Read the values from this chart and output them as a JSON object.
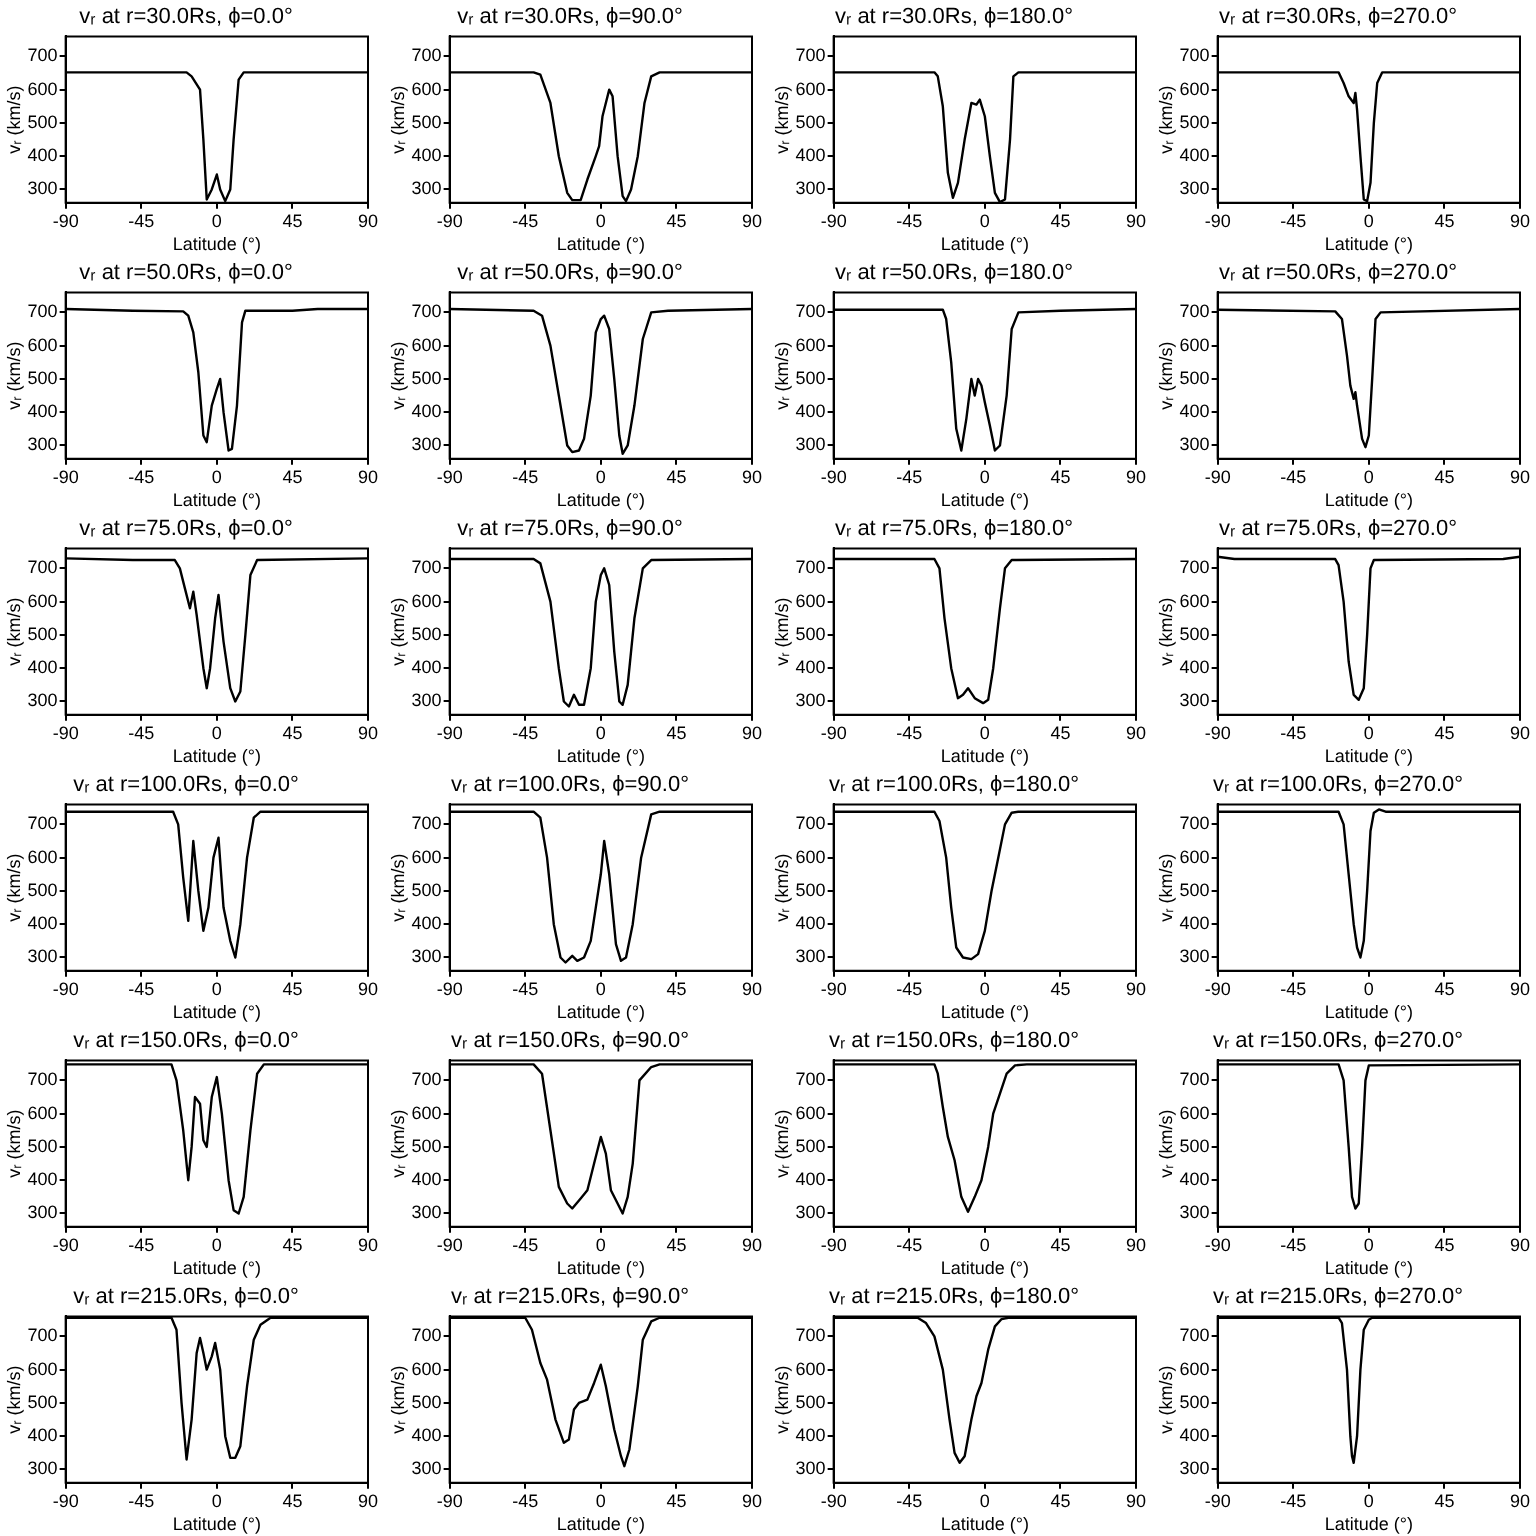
{
  "chart_data": [
    {
      "type": "line",
      "title": "vᵣ at r=30.0Rs, ϕ=0.0°",
      "xlabel": "Latitude (°)",
      "ylabel": "vᵣ (km/s)",
      "xlim": [
        -90,
        90
      ],
      "xticks": [
        -90,
        -45,
        0,
        45,
        90
      ],
      "ylim": [
        260,
        760
      ],
      "yticks": [
        300,
        400,
        500,
        600,
        700
      ],
      "x": [
        -90,
        -18,
        -15,
        -10,
        -8,
        -6,
        -3,
        0,
        2,
        5,
        8,
        10,
        13,
        16,
        90
      ],
      "series": [
        {
          "color": "#000000",
          "values": [
            652,
            652,
            640,
            600,
            450,
            270,
            300,
            345,
            300,
            265,
            300,
            450,
            630,
            652,
            652
          ]
        }
      ]
    },
    {
      "type": "line",
      "title": "vᵣ at r=30.0Rs, ϕ=90.0°",
      "xlabel": "Latitude (°)",
      "ylabel": "vᵣ (km/s)",
      "xlim": [
        -90,
        90
      ],
      "xticks": [
        -90,
        -45,
        0,
        45,
        90
      ],
      "ylim": [
        260,
        760
      ],
      "yticks": [
        300,
        400,
        500,
        600,
        700
      ],
      "x": [
        -90,
        -40,
        -36,
        -30,
        -25,
        -20,
        -17,
        -12,
        -8,
        -3,
        -1,
        1,
        5,
        7,
        10,
        13,
        15,
        18,
        22,
        26,
        30,
        35,
        90
      ],
      "series": [
        {
          "color": "#000000",
          "values": [
            652,
            652,
            645,
            560,
            400,
            290,
            268,
            268,
            330,
            400,
            430,
            520,
            600,
            580,
            400,
            280,
            265,
            300,
            400,
            560,
            640,
            652,
            652
          ]
        }
      ]
    },
    {
      "type": "line",
      "title": "vᵣ at r=30.0Rs, ϕ=180.0°",
      "xlabel": "Latitude (°)",
      "ylabel": "vᵣ (km/s)",
      "xlim": [
        -90,
        90
      ],
      "xticks": [
        -90,
        -45,
        0,
        45,
        90
      ],
      "ylim": [
        260,
        760
      ],
      "yticks": [
        300,
        400,
        500,
        600,
        700
      ],
      "x": [
        -90,
        -30,
        -28,
        -25,
        -22,
        -19,
        -16,
        -12,
        -8,
        -5,
        -3,
        0,
        3,
        6,
        9,
        12,
        15,
        17,
        20,
        90
      ],
      "series": [
        {
          "color": "#000000",
          "values": [
            652,
            652,
            640,
            550,
            350,
            275,
            320,
            450,
            560,
            555,
            570,
            520,
            400,
            290,
            262,
            270,
            450,
            640,
            652,
            652
          ]
        }
      ]
    },
    {
      "type": "line",
      "title": "vᵣ at r=30.0Rs, ϕ=270.0°",
      "xlabel": "Latitude (°)",
      "ylabel": "vᵣ (km/s)",
      "xlim": [
        -90,
        90
      ],
      "xticks": [
        -90,
        -45,
        0,
        45,
        90
      ],
      "ylim": [
        260,
        760
      ],
      "yticks": [
        300,
        400,
        500,
        600,
        700
      ],
      "x": [
        -90,
        -18,
        -15,
        -12,
        -9,
        -8,
        -7,
        -5,
        -3,
        -1,
        1,
        3,
        5,
        8,
        90
      ],
      "series": [
        {
          "color": "#000000",
          "values": [
            652,
            652,
            620,
            580,
            560,
            590,
            540,
            400,
            270,
            265,
            320,
            500,
            620,
            652,
            652
          ]
        }
      ]
    },
    {
      "type": "line",
      "title": "vᵣ at r=50.0Rs, ϕ=0.0°",
      "xlabel": "Latitude (°)",
      "ylabel": "vᵣ (km/s)",
      "xlim": [
        -90,
        90
      ],
      "xticks": [
        -90,
        -45,
        0,
        45,
        90
      ],
      "ylim": [
        260,
        760
      ],
      "yticks": [
        300,
        400,
        500,
        600,
        700
      ],
      "x": [
        -90,
        -50,
        -20,
        -17,
        -14,
        -11,
        -8,
        -6,
        -3,
        0,
        2,
        4,
        7,
        9,
        12,
        15,
        17,
        45,
        60,
        90
      ],
      "series": [
        {
          "color": "#000000",
          "values": [
            710,
            705,
            703,
            690,
            640,
            520,
            330,
            310,
            420,
            470,
            500,
            400,
            285,
            290,
            420,
            670,
            705,
            705,
            710,
            710
          ]
        }
      ]
    },
    {
      "type": "line",
      "title": "vᵣ at r=50.0Rs, ϕ=90.0°",
      "xlabel": "Latitude (°)",
      "ylabel": "vᵣ (km/s)",
      "xlim": [
        -90,
        90
      ],
      "xticks": [
        -90,
        -45,
        0,
        45,
        90
      ],
      "ylim": [
        260,
        760
      ],
      "yticks": [
        300,
        400,
        500,
        600,
        700
      ],
      "x": [
        -90,
        -40,
        -35,
        -30,
        -25,
        -20,
        -17,
        -13,
        -10,
        -6,
        -3,
        0,
        2,
        5,
        8,
        11,
        13,
        16,
        20,
        25,
        30,
        40,
        90
      ],
      "series": [
        {
          "color": "#000000",
          "values": [
            710,
            705,
            690,
            600,
            450,
            300,
            280,
            285,
            320,
            450,
            640,
            680,
            690,
            650,
            500,
            330,
            275,
            300,
            420,
            620,
            700,
            705,
            710
          ]
        }
      ]
    },
    {
      "type": "line",
      "title": "vᵣ at r=50.0Rs, ϕ=180.0°",
      "xlabel": "Latitude (°)",
      "ylabel": "vᵣ (km/s)",
      "xlim": [
        -90,
        90
      ],
      "xticks": [
        -90,
        -45,
        0,
        45,
        90
      ],
      "ylim": [
        260,
        760
      ],
      "yticks": [
        300,
        400,
        500,
        600,
        700
      ],
      "x": [
        -90,
        -25,
        -23,
        -20,
        -17,
        -14,
        -11,
        -8,
        -6,
        -4,
        -2,
        0,
        3,
        6,
        9,
        13,
        16,
        20,
        45,
        90
      ],
      "series": [
        {
          "color": "#000000",
          "values": [
            708,
            708,
            680,
            550,
            350,
            285,
            380,
            500,
            450,
            500,
            480,
            430,
            360,
            285,
            300,
            450,
            650,
            700,
            705,
            710
          ]
        }
      ]
    },
    {
      "type": "line",
      "title": "vᵣ at r=50.0Rs, ϕ=270.0°",
      "xlabel": "Latitude (°)",
      "ylabel": "vᵣ (km/s)",
      "xlim": [
        -90,
        90
      ],
      "xticks": [
        -90,
        -45,
        0,
        45,
        90
      ],
      "ylim": [
        260,
        760
      ],
      "yticks": [
        300,
        400,
        500,
        600,
        700
      ],
      "x": [
        -90,
        -20,
        -16,
        -13,
        -11,
        -9,
        -8,
        -7,
        -4,
        -2,
        0,
        2,
        4,
        7,
        90
      ],
      "series": [
        {
          "color": "#000000",
          "values": [
            708,
            703,
            680,
            570,
            480,
            440,
            460,
            420,
            320,
            295,
            330,
            500,
            680,
            700,
            710
          ]
        }
      ]
    },
    {
      "type": "line",
      "title": "vᵣ at r=75.0Rs, ϕ=0.0°",
      "xlabel": "Latitude (°)",
      "ylabel": "vᵣ (km/s)",
      "xlim": [
        -90,
        90
      ],
      "xticks": [
        -90,
        -45,
        0,
        45,
        90
      ],
      "ylim": [
        260,
        760
      ],
      "yticks": [
        300,
        400,
        500,
        600,
        700
      ],
      "x": [
        -90,
        -50,
        -25,
        -22,
        -19,
        -16,
        -14,
        -12,
        -8,
        -6,
        -4,
        -1,
        1,
        4,
        8,
        11,
        14,
        17,
        20,
        24,
        90
      ],
      "series": [
        {
          "color": "#000000",
          "values": [
            730,
            725,
            725,
            700,
            640,
            580,
            630,
            560,
            400,
            340,
            400,
            550,
            620,
            480,
            340,
            300,
            330,
            500,
            680,
            725,
            730
          ]
        }
      ]
    },
    {
      "type": "line",
      "title": "vᵣ at r=75.0Rs, ϕ=90.0°",
      "xlabel": "Latitude (°)",
      "ylabel": "vᵣ (km/s)",
      "xlim": [
        -90,
        90
      ],
      "xticks": [
        -90,
        -45,
        0,
        45,
        90
      ],
      "ylim": [
        260,
        760
      ],
      "yticks": [
        300,
        400,
        500,
        600,
        700
      ],
      "x": [
        -90,
        -40,
        -36,
        -30,
        -25,
        -22,
        -19,
        -16,
        -13,
        -10,
        -6,
        -3,
        0,
        2,
        5,
        8,
        11,
        13,
        16,
        20,
        25,
        30,
        90
      ],
      "series": [
        {
          "color": "#000000",
          "values": [
            728,
            728,
            715,
            600,
            400,
            300,
            285,
            320,
            290,
            290,
            400,
            600,
            680,
            700,
            650,
            450,
            300,
            290,
            350,
            550,
            700,
            725,
            728
          ]
        }
      ]
    },
    {
      "type": "line",
      "title": "vᵣ at r=75.0Rs, ϕ=180.0°",
      "xlabel": "Latitude (°)",
      "ylabel": "vᵣ (km/s)",
      "xlim": [
        -90,
        90
      ],
      "xticks": [
        -90,
        -45,
        0,
        45,
        90
      ],
      "ylim": [
        260,
        760
      ],
      "yticks": [
        300,
        400,
        500,
        600,
        700
      ],
      "x": [
        -90,
        -30,
        -27,
        -24,
        -20,
        -16,
        -13,
        -10,
        -6,
        -1,
        2,
        5,
        9,
        12,
        16,
        90
      ],
      "series": [
        {
          "color": "#000000",
          "values": [
            728,
            728,
            700,
            550,
            400,
            310,
            320,
            340,
            310,
            295,
            305,
            400,
            580,
            700,
            725,
            728
          ]
        }
      ]
    },
    {
      "type": "line",
      "title": "vᵣ at r=75.0Rs, ϕ=270.0°",
      "xlabel": "Latitude (°)",
      "ylabel": "vᵣ (km/s)",
      "xlim": [
        -90,
        90
      ],
      "xticks": [
        -90,
        -45,
        0,
        45,
        90
      ],
      "ylim": [
        260,
        760
      ],
      "yticks": [
        300,
        400,
        500,
        600,
        700
      ],
      "x": [
        -90,
        -80,
        -20,
        -18,
        -15,
        -12,
        -9,
        -6,
        -3,
        -1,
        1,
        3,
        80,
        90
      ],
      "series": [
        {
          "color": "#000000",
          "values": [
            735,
            728,
            728,
            710,
            600,
            420,
            320,
            305,
            340,
            500,
            700,
            725,
            728,
            735
          ]
        }
      ]
    },
    {
      "type": "line",
      "title": "vᵣ at r=100.0Rs, ϕ=0.0°",
      "xlabel": "Latitude (°)",
      "ylabel": "vᵣ (km/s)",
      "xlim": [
        -90,
        90
      ],
      "xticks": [
        -90,
        -45,
        0,
        45,
        90
      ],
      "ylim": [
        260,
        760
      ],
      "yticks": [
        300,
        400,
        500,
        600,
        700
      ],
      "x": [
        -90,
        -26,
        -23,
        -20,
        -17,
        -14,
        -11,
        -8,
        -5,
        -2,
        1,
        4,
        8,
        11,
        14,
        18,
        22,
        26,
        90
      ],
      "series": [
        {
          "color": "#000000",
          "values": [
            738,
            738,
            700,
            540,
            410,
            650,
            500,
            380,
            450,
            600,
            660,
            450,
            350,
            300,
            400,
            600,
            720,
            738,
            738
          ]
        }
      ]
    },
    {
      "type": "line",
      "title": "vᵣ at r=100.0Rs, ϕ=90.0°",
      "xlabel": "Latitude (°)",
      "ylabel": "vᵣ (km/s)",
      "xlim": [
        -90,
        90
      ],
      "xticks": [
        -90,
        -45,
        0,
        45,
        90
      ],
      "ylim": [
        260,
        760
      ],
      "yticks": [
        300,
        400,
        500,
        600,
        700
      ],
      "x": [
        -90,
        -40,
        -36,
        -32,
        -28,
        -24,
        -21,
        -17,
        -14,
        -10,
        -6,
        -3,
        0,
        2,
        5,
        9,
        12,
        15,
        19,
        24,
        30,
        35,
        90
      ],
      "series": [
        {
          "color": "#000000",
          "values": [
            738,
            738,
            720,
            600,
            400,
            300,
            285,
            305,
            290,
            300,
            350,
            450,
            550,
            650,
            550,
            340,
            290,
            300,
            400,
            600,
            730,
            738,
            738
          ]
        }
      ]
    },
    {
      "type": "line",
      "title": "vᵣ at r=100.0Rs, ϕ=180.0°",
      "xlabel": "Latitude (°)",
      "ylabel": "vᵣ (km/s)",
      "xlim": [
        -90,
        90
      ],
      "xticks": [
        -90,
        -45,
        0,
        45,
        90
      ],
      "ylim": [
        260,
        760
      ],
      "yticks": [
        300,
        400,
        500,
        600,
        700
      ],
      "x": [
        -90,
        -30,
        -27,
        -23,
        -20,
        -17,
        -13,
        -8,
        -4,
        0,
        4,
        8,
        12,
        16,
        20,
        90
      ],
      "series": [
        {
          "color": "#000000",
          "values": [
            738,
            738,
            710,
            600,
            450,
            330,
            300,
            295,
            310,
            380,
            500,
            600,
            700,
            735,
            738,
            738
          ]
        }
      ]
    },
    {
      "type": "line",
      "title": "vᵣ at r=100.0Rs, ϕ=270.0°",
      "xlabel": "Latitude (°)",
      "ylabel": "vᵣ (km/s)",
      "xlim": [
        -90,
        90
      ],
      "xticks": [
        -90,
        -45,
        0,
        45,
        90
      ],
      "ylim": [
        260,
        760
      ],
      "yticks": [
        300,
        400,
        500,
        600,
        700
      ],
      "x": [
        -90,
        -18,
        -15,
        -12,
        -9,
        -7,
        -5,
        -3,
        -1,
        1,
        3,
        6,
        10,
        90
      ],
      "series": [
        {
          "color": "#000000",
          "values": [
            738,
            738,
            700,
            550,
            400,
            330,
            300,
            350,
            500,
            680,
            735,
            745,
            738,
            738
          ]
        }
      ]
    },
    {
      "type": "line",
      "title": "vᵣ at r=150.0Rs, ϕ=0.0°",
      "xlabel": "Latitude (°)",
      "ylabel": "vᵣ (km/s)",
      "xlim": [
        -90,
        90
      ],
      "xticks": [
        -90,
        -45,
        0,
        45,
        90
      ],
      "ylim": [
        260,
        760
      ],
      "yticks": [
        300,
        400,
        500,
        600,
        700
      ],
      "x": [
        -90,
        -27,
        -24,
        -20,
        -17,
        -15,
        -13,
        -10,
        -8,
        -6,
        -3,
        0,
        3,
        7,
        10,
        13,
        16,
        20,
        24,
        28,
        90
      ],
      "series": [
        {
          "color": "#000000",
          "values": [
            748,
            748,
            700,
            550,
            400,
            500,
            650,
            630,
            520,
            500,
            650,
            710,
            600,
            400,
            310,
            300,
            350,
            550,
            720,
            748,
            748
          ]
        }
      ]
    },
    {
      "type": "line",
      "title": "vᵣ at r=150.0Rs, ϕ=90.0°",
      "xlabel": "Latitude (°)",
      "ylabel": "vᵣ (km/s)",
      "xlim": [
        -90,
        90
      ],
      "xticks": [
        -90,
        -45,
        0,
        45,
        90
      ],
      "ylim": [
        260,
        760
      ],
      "yticks": [
        300,
        400,
        500,
        600,
        700
      ],
      "x": [
        -90,
        -40,
        -35,
        -30,
        -25,
        -20,
        -17,
        -12,
        -8,
        -4,
        0,
        3,
        6,
        10,
        13,
        16,
        19,
        23,
        30,
        35,
        90
      ],
      "series": [
        {
          "color": "#000000",
          "values": [
            748,
            748,
            720,
            550,
            380,
            330,
            315,
            345,
            370,
            450,
            530,
            480,
            370,
            330,
            300,
            350,
            450,
            700,
            740,
            748,
            748
          ]
        }
      ]
    },
    {
      "type": "line",
      "title": "vᵣ at r=150.0Rs, ϕ=180.0°",
      "xlabel": "Latitude (°)",
      "ylabel": "vᵣ (km/s)",
      "xlim": [
        -90,
        90
      ],
      "xticks": [
        -90,
        -45,
        0,
        45,
        90
      ],
      "ylim": [
        260,
        760
      ],
      "yticks": [
        300,
        400,
        500,
        600,
        700
      ],
      "x": [
        -90,
        -30,
        -28,
        -25,
        -22,
        -18,
        -14,
        -10,
        -6,
        -2,
        2,
        5,
        9,
        13,
        18,
        25,
        90
      ],
      "series": [
        {
          "color": "#000000",
          "values": [
            748,
            748,
            720,
            620,
            530,
            460,
            350,
            305,
            350,
            400,
            500,
            600,
            660,
            720,
            745,
            748,
            748
          ]
        }
      ]
    },
    {
      "type": "line",
      "title": "vᵣ at r=150.0Rs, ϕ=270.0°",
      "xlabel": "Latitude (°)",
      "ylabel": "vᵣ (km/s)",
      "xlim": [
        -90,
        90
      ],
      "xticks": [
        -90,
        -45,
        0,
        45,
        90
      ],
      "ylim": [
        260,
        760
      ],
      "yticks": [
        300,
        400,
        500,
        600,
        700
      ],
      "x": [
        -90,
        -18,
        -15,
        -12,
        -10,
        -8,
        -6,
        -4,
        -2,
        0,
        90
      ],
      "series": [
        {
          "color": "#000000",
          "values": [
            748,
            748,
            700,
            500,
            350,
            315,
            330,
            500,
            700,
            745,
            748
          ]
        }
      ]
    },
    {
      "type": "line",
      "title": "vᵣ at r=215.0Rs, ϕ=0.0°",
      "xlabel": "Latitude (°)",
      "ylabel": "vᵣ (km/s)",
      "xlim": [
        -90,
        90
      ],
      "xticks": [
        -90,
        -45,
        0,
        45,
        90
      ],
      "ylim": [
        260,
        760
      ],
      "yticks": [
        300,
        400,
        500,
        600,
        700
      ],
      "x": [
        -90,
        -27,
        -24,
        -21,
        -18,
        -15,
        -12,
        -10,
        -8,
        -6,
        -3,
        -1,
        2,
        5,
        8,
        11,
        14,
        18,
        22,
        26,
        32,
        90
      ],
      "series": [
        {
          "color": "#000000",
          "values": [
            756,
            756,
            720,
            500,
            330,
            450,
            650,
            695,
            650,
            600,
            640,
            680,
            600,
            400,
            335,
            335,
            370,
            550,
            690,
            735,
            756,
            756
          ]
        }
      ]
    },
    {
      "type": "line",
      "title": "vᵣ at r=215.0Rs, ϕ=90.0°",
      "xlabel": "Latitude (°)",
      "ylabel": "vᵣ (km/s)",
      "xlim": [
        -90,
        90
      ],
      "xticks": [
        -90,
        -45,
        0,
        45,
        90
      ],
      "ylim": [
        260,
        760
      ],
      "yticks": [
        300,
        400,
        500,
        600,
        700
      ],
      "x": [
        -90,
        -45,
        -41,
        -36,
        -32,
        -27,
        -22,
        -19,
        -16,
        -13,
        -8,
        -4,
        0,
        3,
        8,
        12,
        14,
        17,
        22,
        25,
        30,
        35,
        90
      ],
      "series": [
        {
          "color": "#000000",
          "values": [
            756,
            756,
            720,
            620,
            570,
            450,
            380,
            390,
            480,
            500,
            510,
            560,
            615,
            550,
            420,
            340,
            310,
            360,
            550,
            690,
            745,
            756,
            756
          ]
        }
      ]
    },
    {
      "type": "line",
      "title": "vᵣ at r=215.0Rs, ϕ=180.0°",
      "xlabel": "Latitude (°)",
      "ylabel": "vᵣ (km/s)",
      "xlim": [
        -90,
        90
      ],
      "xticks": [
        -90,
        -45,
        0,
        45,
        90
      ],
      "ylim": [
        260,
        760
      ],
      "yticks": [
        300,
        400,
        500,
        600,
        700
      ],
      "x": [
        -90,
        -40,
        -35,
        -30,
        -25,
        -21,
        -18,
        -15,
        -12,
        -8,
        -5,
        -2,
        2,
        6,
        10,
        14,
        90
      ],
      "series": [
        {
          "color": "#000000",
          "values": [
            756,
            756,
            740,
            700,
            600,
            450,
            350,
            320,
            340,
            450,
            520,
            560,
            660,
            730,
            752,
            756,
            756
          ]
        }
      ]
    },
    {
      "type": "line",
      "title": "vᵣ at r=215.0Rs, ϕ=270.0°",
      "xlabel": "Latitude (°)",
      "ylabel": "vᵣ (km/s)",
      "xlim": [
        -90,
        90
      ],
      "xticks": [
        -90,
        -45,
        0,
        45,
        90
      ],
      "ylim": [
        260,
        760
      ],
      "yticks": [
        300,
        400,
        500,
        600,
        700
      ],
      "x": [
        -90,
        -18,
        -16,
        -13,
        -11,
        -10,
        -9,
        -7,
        -5,
        -3,
        0,
        2,
        90
      ],
      "series": [
        {
          "color": "#000000",
          "values": [
            756,
            756,
            740,
            600,
            400,
            340,
            320,
            400,
            600,
            720,
            750,
            756,
            756
          ]
        }
      ]
    }
  ]
}
